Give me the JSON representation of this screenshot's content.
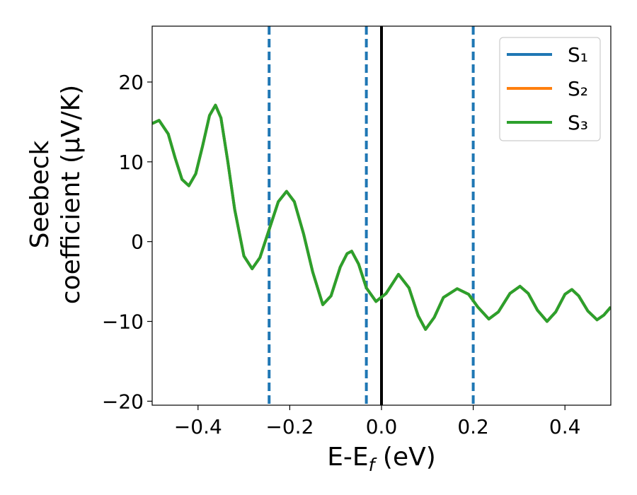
{
  "chart_data": {
    "type": "line",
    "ylabel": [
      "Seebeck",
      "coefficient  (μV/K)"
    ],
    "xlabel": {
      "main": "E-E",
      "sub": "f",
      "unit": " (eV)"
    },
    "x": [
      -0.5,
      -0.485,
      -0.465,
      -0.45,
      -0.435,
      -0.42,
      -0.405,
      -0.39,
      -0.375,
      -0.362,
      -0.35,
      -0.335,
      -0.32,
      -0.3,
      -0.282,
      -0.265,
      -0.245,
      -0.225,
      -0.207,
      -0.19,
      -0.17,
      -0.15,
      -0.128,
      -0.11,
      -0.09,
      -0.075,
      -0.065,
      -0.05,
      -0.033,
      -0.012,
      0.01,
      0.037,
      0.06,
      0.08,
      0.096,
      0.115,
      0.135,
      0.165,
      0.19,
      0.21,
      0.234,
      0.255,
      0.28,
      0.302,
      0.32,
      0.34,
      0.361,
      0.38,
      0.4,
      0.415,
      0.43,
      0.45,
      0.47,
      0.485,
      0.5
    ],
    "series": [
      {
        "name": "S₁",
        "color": "#1f77b4",
        "values": [
          14.8,
          15.2,
          13.5,
          10.5,
          7.8,
          7.0,
          8.5,
          12.0,
          15.8,
          17.1,
          15.5,
          10.0,
          4.0,
          -1.8,
          -3.4,
          -2.0,
          1.5,
          5.0,
          6.3,
          5.0,
          1.0,
          -3.8,
          -7.9,
          -6.8,
          -3.2,
          -1.5,
          -1.2,
          -2.8,
          -5.8,
          -7.5,
          -6.5,
          -4.1,
          -5.8,
          -9.3,
          -11.0,
          -9.5,
          -7.0,
          -5.9,
          -6.6,
          -8.2,
          -9.7,
          -8.8,
          -6.5,
          -5.6,
          -6.5,
          -8.6,
          -10.0,
          -8.8,
          -6.6,
          -6.0,
          -6.8,
          -8.7,
          -9.8,
          -9.2,
          -8.2
        ]
      },
      {
        "name": "S₂",
        "color": "#ff7f0e",
        "values": [
          14.8,
          15.2,
          13.5,
          10.5,
          7.8,
          7.0,
          8.5,
          12.0,
          15.8,
          17.1,
          15.5,
          10.0,
          4.0,
          -1.8,
          -3.4,
          -2.0,
          1.5,
          5.0,
          6.3,
          5.0,
          1.0,
          -3.8,
          -7.9,
          -6.8,
          -3.2,
          -1.5,
          -1.2,
          -2.8,
          -5.8,
          -7.5,
          -6.5,
          -4.1,
          -5.8,
          -9.3,
          -11.0,
          -9.5,
          -7.0,
          -5.9,
          -6.6,
          -8.2,
          -9.7,
          -8.8,
          -6.5,
          -5.6,
          -6.5,
          -8.6,
          -10.0,
          -8.8,
          -6.6,
          -6.0,
          -6.8,
          -8.7,
          -9.8,
          -9.2,
          -8.2
        ]
      },
      {
        "name": "S₃",
        "color": "#2ca02c",
        "values": [
          14.8,
          15.2,
          13.5,
          10.5,
          7.8,
          7.0,
          8.5,
          12.0,
          15.8,
          17.1,
          15.5,
          10.0,
          4.0,
          -1.8,
          -3.4,
          -2.0,
          1.5,
          5.0,
          6.3,
          5.0,
          1.0,
          -3.8,
          -7.9,
          -6.8,
          -3.2,
          -1.5,
          -1.2,
          -2.8,
          -5.8,
          -7.5,
          -6.5,
          -4.1,
          -5.8,
          -9.3,
          -11.0,
          -9.5,
          -7.0,
          -5.9,
          -6.6,
          -8.2,
          -9.7,
          -8.8,
          -6.5,
          -5.6,
          -6.5,
          -8.6,
          -10.0,
          -8.8,
          -6.6,
          -6.0,
          -6.8,
          -8.7,
          -9.8,
          -9.2,
          -8.2
        ]
      }
    ],
    "vlines": [
      {
        "x": -0.245,
        "color": "#1f77b4",
        "style": "dashed"
      },
      {
        "x": -0.033,
        "color": "#1f77b4",
        "style": "dashed"
      },
      {
        "x": 0.2,
        "color": "#1f77b4",
        "style": "dashed"
      },
      {
        "x": 0,
        "color": "#000000",
        "style": "solid"
      }
    ],
    "xlim": [
      -0.5,
      0.5
    ],
    "ylim": [
      -20.5,
      27
    ],
    "xticks": [
      {
        "value": -0.4,
        "label": "−0.4"
      },
      {
        "value": -0.2,
        "label": "−0.2"
      },
      {
        "value": 0.0,
        "label": "0.0"
      },
      {
        "value": 0.2,
        "label": "0.2"
      },
      {
        "value": 0.4,
        "label": "0.4"
      }
    ],
    "yticks": [
      {
        "value": -20,
        "label": "−20"
      },
      {
        "value": -10,
        "label": "−10"
      },
      0,
      10,
      20
    ],
    "grid": false,
    "legend": "upper right"
  }
}
